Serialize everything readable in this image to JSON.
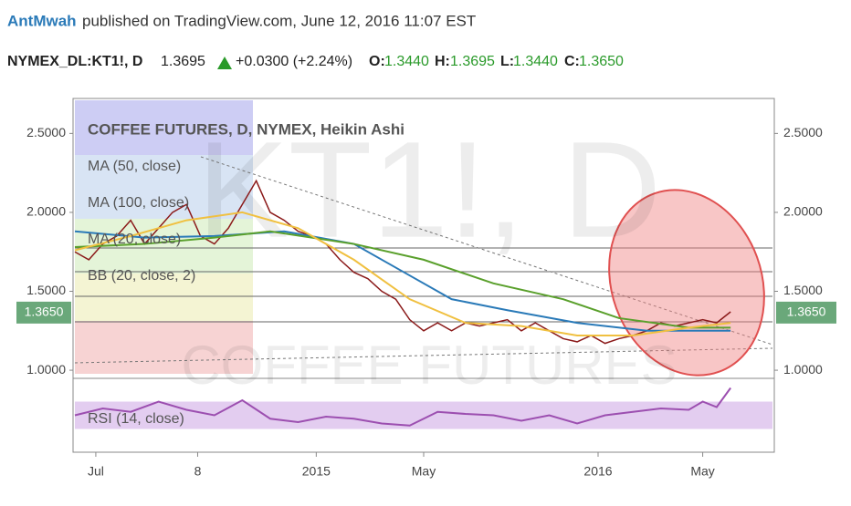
{
  "header": {
    "author": "AntMwah",
    "published": "published on TradingView.com, June 12, 2016 11:07 EST",
    "symbol": "NYMEX_DL:KT1!, D",
    "price": "1.3695",
    "change": "+0.0300 (+2.24%)",
    "o_label": "O:",
    "o": "1.3440",
    "h_label": "H:",
    "h": "1.3695",
    "l_label": "L:",
    "l": "1.3440",
    "c_label": "C:",
    "c": "1.3650"
  },
  "chart_data": [
    {
      "type": "line",
      "title": "COFFEE FUTURES, D, NYMEX, Heikin Ashi",
      "watermark": "KT1!, D",
      "watermark2": "COFFEE FUTURES",
      "indicators": [
        "MA (50, close)",
        "MA (100, close)",
        "MA (20, close)",
        "BB (20, close, 2)"
      ],
      "xlim": [
        0,
        100
      ],
      "xticks": [
        {
          "value": 3,
          "label": "Jul"
        },
        {
          "value": 17.6,
          "label": "8"
        },
        {
          "value": 34.6,
          "label": "2015"
        },
        {
          "value": 50,
          "label": "May"
        },
        {
          "value": 75,
          "label": "2016"
        },
        {
          "value": 90,
          "label": "May"
        }
      ],
      "ylim": [
        0.96,
        2.71
      ],
      "yticks": [
        {
          "value": 1,
          "label": "1.0000"
        },
        {
          "value": 1.5,
          "label": "1.5000"
        },
        {
          "value": 2,
          "label": "2.0000"
        },
        {
          "value": 2.5,
          "label": "2.5000"
        }
      ],
      "last_price": 1.365,
      "last_price_label": "1.3650",
      "series": [
        {
          "name": "Price",
          "color": "#8b1a1a",
          "x": [
            0,
            2,
            4,
            6,
            8,
            10,
            12,
            14,
            16,
            18,
            20,
            22,
            24,
            26,
            28,
            30,
            32,
            34,
            36,
            38,
            40,
            42,
            44,
            46,
            48,
            50,
            52,
            54,
            56,
            58,
            60,
            62,
            64,
            66,
            68,
            70,
            72,
            74,
            76,
            78,
            80,
            82,
            84,
            86,
            88,
            90,
            92,
            94
          ],
          "values": [
            1.75,
            1.7,
            1.8,
            1.85,
            1.95,
            1.8,
            1.9,
            2.0,
            2.05,
            1.85,
            1.8,
            1.9,
            2.05,
            2.2,
            2.0,
            1.95,
            1.88,
            1.85,
            1.8,
            1.7,
            1.62,
            1.58,
            1.5,
            1.45,
            1.32,
            1.25,
            1.3,
            1.25,
            1.3,
            1.28,
            1.3,
            1.32,
            1.25,
            1.3,
            1.25,
            1.2,
            1.18,
            1.22,
            1.17,
            1.2,
            1.22,
            1.25,
            1.3,
            1.28,
            1.3,
            1.32,
            1.3,
            1.37
          ]
        },
        {
          "name": "MA (100, close)",
          "color": "#2a7ab8",
          "x": [
            0,
            10,
            20,
            30,
            40,
            48,
            54,
            62,
            72,
            82,
            94
          ],
          "values": [
            1.88,
            1.84,
            1.85,
            1.88,
            1.8,
            1.6,
            1.45,
            1.38,
            1.3,
            1.25,
            1.25
          ]
        },
        {
          "name": "MA (50, close)",
          "color": "#5aa02c",
          "x": [
            0,
            10,
            20,
            28,
            40,
            50,
            60,
            70,
            78,
            88,
            94
          ],
          "values": [
            1.78,
            1.8,
            1.84,
            1.88,
            1.8,
            1.7,
            1.55,
            1.45,
            1.33,
            1.27,
            1.27
          ]
        },
        {
          "name": "MA (20, close)",
          "color": "#f0c040",
          "x": [
            0,
            8,
            16,
            24,
            32,
            40,
            48,
            56,
            64,
            72,
            80,
            88,
            94
          ],
          "values": [
            1.76,
            1.85,
            1.95,
            2.0,
            1.9,
            1.7,
            1.45,
            1.3,
            1.28,
            1.22,
            1.22,
            1.27,
            1.3
          ]
        }
      ]
    },
    {
      "type": "line",
      "title": "RSI (14, close)",
      "xlim": [
        0,
        100
      ],
      "ylim": [
        0,
        100
      ],
      "band": [
        30,
        70
      ],
      "series": [
        {
          "name": "RSI",
          "color": "#9c4fb0",
          "x": [
            0,
            4,
            8,
            12,
            16,
            20,
            24,
            28,
            32,
            36,
            40,
            44,
            48,
            52,
            56,
            60,
            64,
            68,
            72,
            76,
            80,
            84,
            88,
            90,
            92,
            94
          ],
          "values": [
            50,
            60,
            55,
            70,
            58,
            50,
            72,
            45,
            40,
            48,
            45,
            38,
            35,
            55,
            52,
            50,
            42,
            50,
            38,
            50,
            55,
            60,
            58,
            70,
            62,
            90
          ]
        }
      ]
    }
  ]
}
